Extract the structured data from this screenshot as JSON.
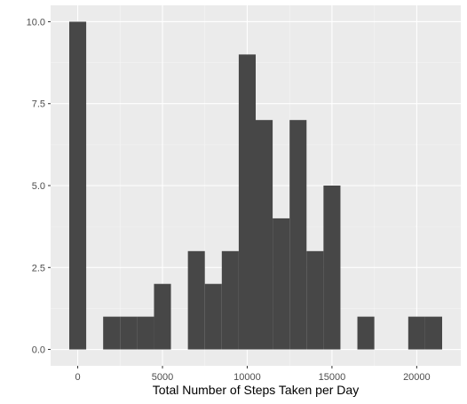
{
  "chart_data": {
    "type": "bar",
    "subtype": "histogram",
    "title": "",
    "xlabel": "Total Number of Steps Taken per Day",
    "ylabel": "",
    "bin_width": 1000,
    "bins": [
      {
        "start": -500,
        "end": 500,
        "count": 10
      },
      {
        "start": 1500,
        "end": 2500,
        "count": 1
      },
      {
        "start": 2500,
        "end": 3500,
        "count": 1
      },
      {
        "start": 3500,
        "end": 4500,
        "count": 1
      },
      {
        "start": 4500,
        "end": 5500,
        "count": 2
      },
      {
        "start": 6500,
        "end": 7500,
        "count": 3
      },
      {
        "start": 7500,
        "end": 8500,
        "count": 2
      },
      {
        "start": 8500,
        "end": 9500,
        "count": 3
      },
      {
        "start": 9500,
        "end": 10500,
        "count": 9
      },
      {
        "start": 10500,
        "end": 11500,
        "count": 7
      },
      {
        "start": 11500,
        "end": 12500,
        "count": 4
      },
      {
        "start": 12500,
        "end": 13500,
        "count": 7
      },
      {
        "start": 13500,
        "end": 14500,
        "count": 3
      },
      {
        "start": 14500,
        "end": 15500,
        "count": 5
      },
      {
        "start": 16500,
        "end": 17500,
        "count": 1
      },
      {
        "start": 19500,
        "end": 20500,
        "count": 1
      },
      {
        "start": 20500,
        "end": 21500,
        "count": 1
      }
    ],
    "xlim": [
      -1600,
      22600
    ],
    "ylim": [
      -0.5,
      10.5
    ],
    "x_ticks": [
      0,
      5000,
      10000,
      15000,
      20000
    ],
    "x_tick_labels": [
      "0",
      "5000",
      "10000",
      "15000",
      "20000"
    ],
    "y_ticks": [
      0,
      2.5,
      5,
      7.5,
      10
    ],
    "y_tick_labels": [
      "0.0",
      "2.5",
      "5.0",
      "7.5",
      "10.0"
    ],
    "grid": true,
    "colors": {
      "bar": "#474747",
      "panel": "#ebebeb",
      "grid_major": "#ffffff",
      "grid_minor": "#f5f5f5",
      "tick_text": "#4d4d4d",
      "axis_title": "#000000"
    }
  }
}
